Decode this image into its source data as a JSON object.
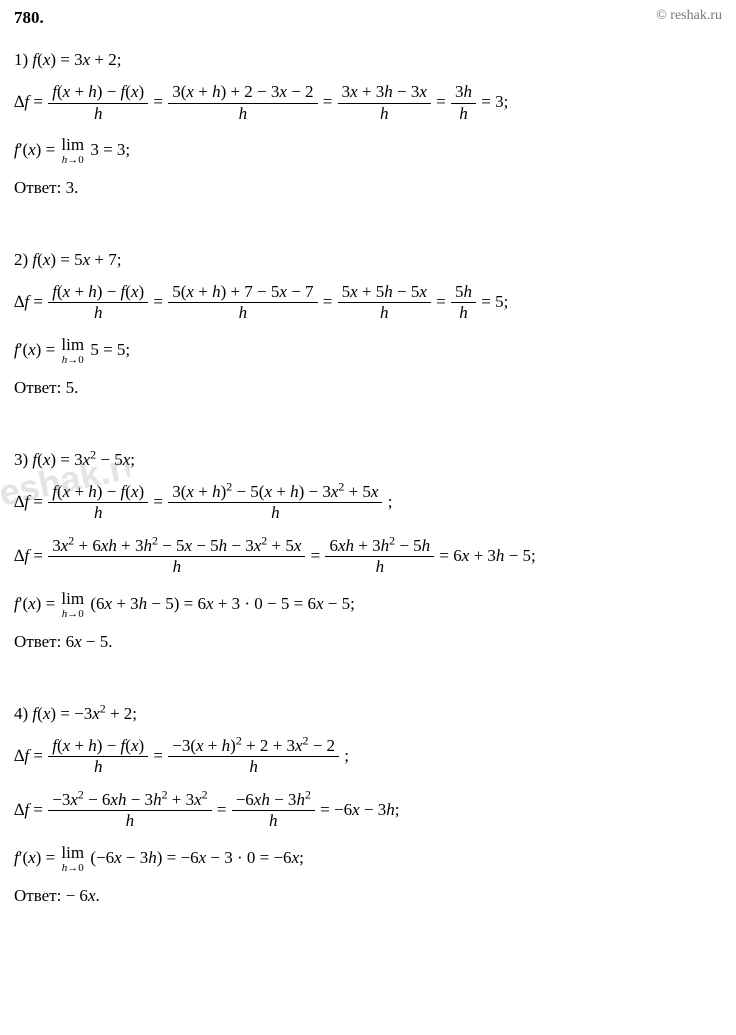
{
  "header": {
    "problem_number": "780.",
    "site_credit": "© reshak.ru"
  },
  "watermark": {
    "text": "reshak.ru"
  },
  "parts": {
    "p1": {
      "title_a": "1) ",
      "title_b": "f",
      "title_c": "(",
      "title_d": "x",
      "title_e": ") = 3",
      "title_f": "x",
      "title_g": " + 2;",
      "df_lhs_a": "∆",
      "df_lhs_b": "f",
      "df_lhs_c": " = ",
      "f1_num_a": "f",
      "f1_num_b": "(",
      "f1_num_c": "x",
      "f1_num_d": " + ",
      "f1_num_e": "h",
      "f1_num_f": ") − ",
      "f1_num_g": "f",
      "f1_num_h": "(",
      "f1_num_i": "x",
      "f1_num_j": ")",
      "f1_den": "h",
      "eq": " = ",
      "f2_num_a": "3(",
      "f2_num_b": "x",
      "f2_num_c": " + ",
      "f2_num_d": "h",
      "f2_num_e": ") + 2 − 3",
      "f2_num_f": "x",
      "f2_num_g": " − 2",
      "f2_den": "h",
      "f3_num_a": "3",
      "f3_num_b": "x",
      "f3_num_c": " + 3",
      "f3_num_d": "h",
      "f3_num_e": " − 3",
      "f3_num_f": "x",
      "f3_den": "h",
      "f4_num_a": "3",
      "f4_num_b": "h",
      "f4_den": "h",
      "tail": " = 3;",
      "lim_a": "f",
      "lim_b": "′(",
      "lim_c": "x",
      "lim_d": ") = ",
      "lim_top": "lim",
      "lim_bot_a": "h",
      "lim_bot_b": "→0",
      "lim_e": " 3 = 3;",
      "ans_label": "Ответ: ",
      "ans_value": "3."
    },
    "p2": {
      "title_a": "2) ",
      "title_b": "f",
      "title_c": "(",
      "title_d": "x",
      "title_e": ") = 5",
      "title_f": "x",
      "title_g": " + 7;",
      "f2_num_a": "5(",
      "f2_num_b": "x",
      "f2_num_c": " + ",
      "f2_num_d": "h",
      "f2_num_e": ") + 7 − 5",
      "f2_num_f": "x",
      "f2_num_g": " − 7",
      "f3_num_a": "5",
      "f3_num_b": "x",
      "f3_num_c": " + 5",
      "f3_num_d": "h",
      "f3_num_e": " − 5",
      "f3_num_f": "x",
      "f4_num_a": "5",
      "f4_num_b": "h",
      "tail": " = 5;",
      "lim_e": " 5 = 5;",
      "ans_value": "5."
    },
    "p3": {
      "title_a": "3) ",
      "title_b": "f",
      "title_c": "(",
      "title_d": "x",
      "title_e": ") = 3",
      "title_f": "x",
      "title_g": " − 5",
      "title_h": "x",
      "title_i": ";",
      "sq": "2",
      "f2_num_a": "3(",
      "f2_num_b": "x",
      "f2_num_c": " + ",
      "f2_num_d": "h",
      "f2_num_e": ")",
      "f2_num_f": " − 5(",
      "f2_num_g": "x",
      "f2_num_h": " + ",
      "f2_num_i": "h",
      "f2_num_j": ") − 3",
      "f2_num_k": "x",
      "f2_num_l": " + 5",
      "f2_num_m": "x",
      "tail1": " ;",
      "f3_num_a": "3",
      "f3_num_b": "x",
      "f3_num_c": " + 6",
      "f3_num_d": "xh",
      "f3_num_e": " + 3",
      "f3_num_f": "h",
      "f3_num_g": " − 5",
      "f3_num_h": "x",
      "f3_num_i": " − 5",
      "f3_num_j": "h",
      "f3_num_k": " − 3",
      "f3_num_l": "x",
      "f3_num_m": " + 5",
      "f3_num_n": "x",
      "f4_num_a": "6",
      "f4_num_b": "xh",
      "f4_num_c": " + 3",
      "f4_num_d": "h",
      "f4_num_e": " − 5",
      "f4_num_f": "h",
      "tail2_a": " = 6",
      "tail2_b": "x",
      "tail2_c": " + 3",
      "tail2_d": "h",
      "tail2_e": " − 5;",
      "lim_e_a": "(6",
      "lim_e_b": "x",
      "lim_e_c": " + 3",
      "lim_e_d": "h",
      "lim_e_e": " − 5) = 6",
      "lim_e_f": "x",
      "lim_e_g": " + 3 · 0 − 5 = 6",
      "lim_e_h": "x",
      "lim_e_i": " − 5;",
      "ans_value_a": "6",
      "ans_value_b": "x",
      "ans_value_c": " − 5."
    },
    "p4": {
      "title_a": "4) ",
      "title_b": "f",
      "title_c": "(",
      "title_d": "x",
      "title_e": ") = −3",
      "title_f": "x",
      "title_g": " + 2;",
      "f2_num_a": "−3(",
      "f2_num_b": "x",
      "f2_num_c": " + ",
      "f2_num_d": "h",
      "f2_num_e": ")",
      "f2_num_f": " + 2 + 3",
      "f2_num_g": "x",
      "f2_num_h": " − 2",
      "tail1": " ;",
      "f3_num_a": "−3",
      "f3_num_b": "x",
      "f3_num_c": " − 6",
      "f3_num_d": "xh",
      "f3_num_e": " − 3",
      "f3_num_f": "h",
      "f3_num_g": " + 3",
      "f3_num_h": "x",
      "f4_num_a": "−6",
      "f4_num_b": "xh",
      "f4_num_c": " − 3",
      "f4_num_d": "h",
      "tail2_a": " = −6",
      "tail2_b": "x",
      "tail2_c": " − 3",
      "tail2_d": "h",
      "tail2_e": ";",
      "lim_e_a": "(−6",
      "lim_e_b": "x",
      "lim_e_c": " − 3",
      "lim_e_d": "h",
      "lim_e_e": ") = −6",
      "lim_e_f": "x",
      "lim_e_g": " − 3 · 0 = −6",
      "lim_e_h": "x",
      "lim_e_i": ";",
      "ans_value_a": " − 6",
      "ans_value_b": "x",
      "ans_value_c": "."
    }
  }
}
